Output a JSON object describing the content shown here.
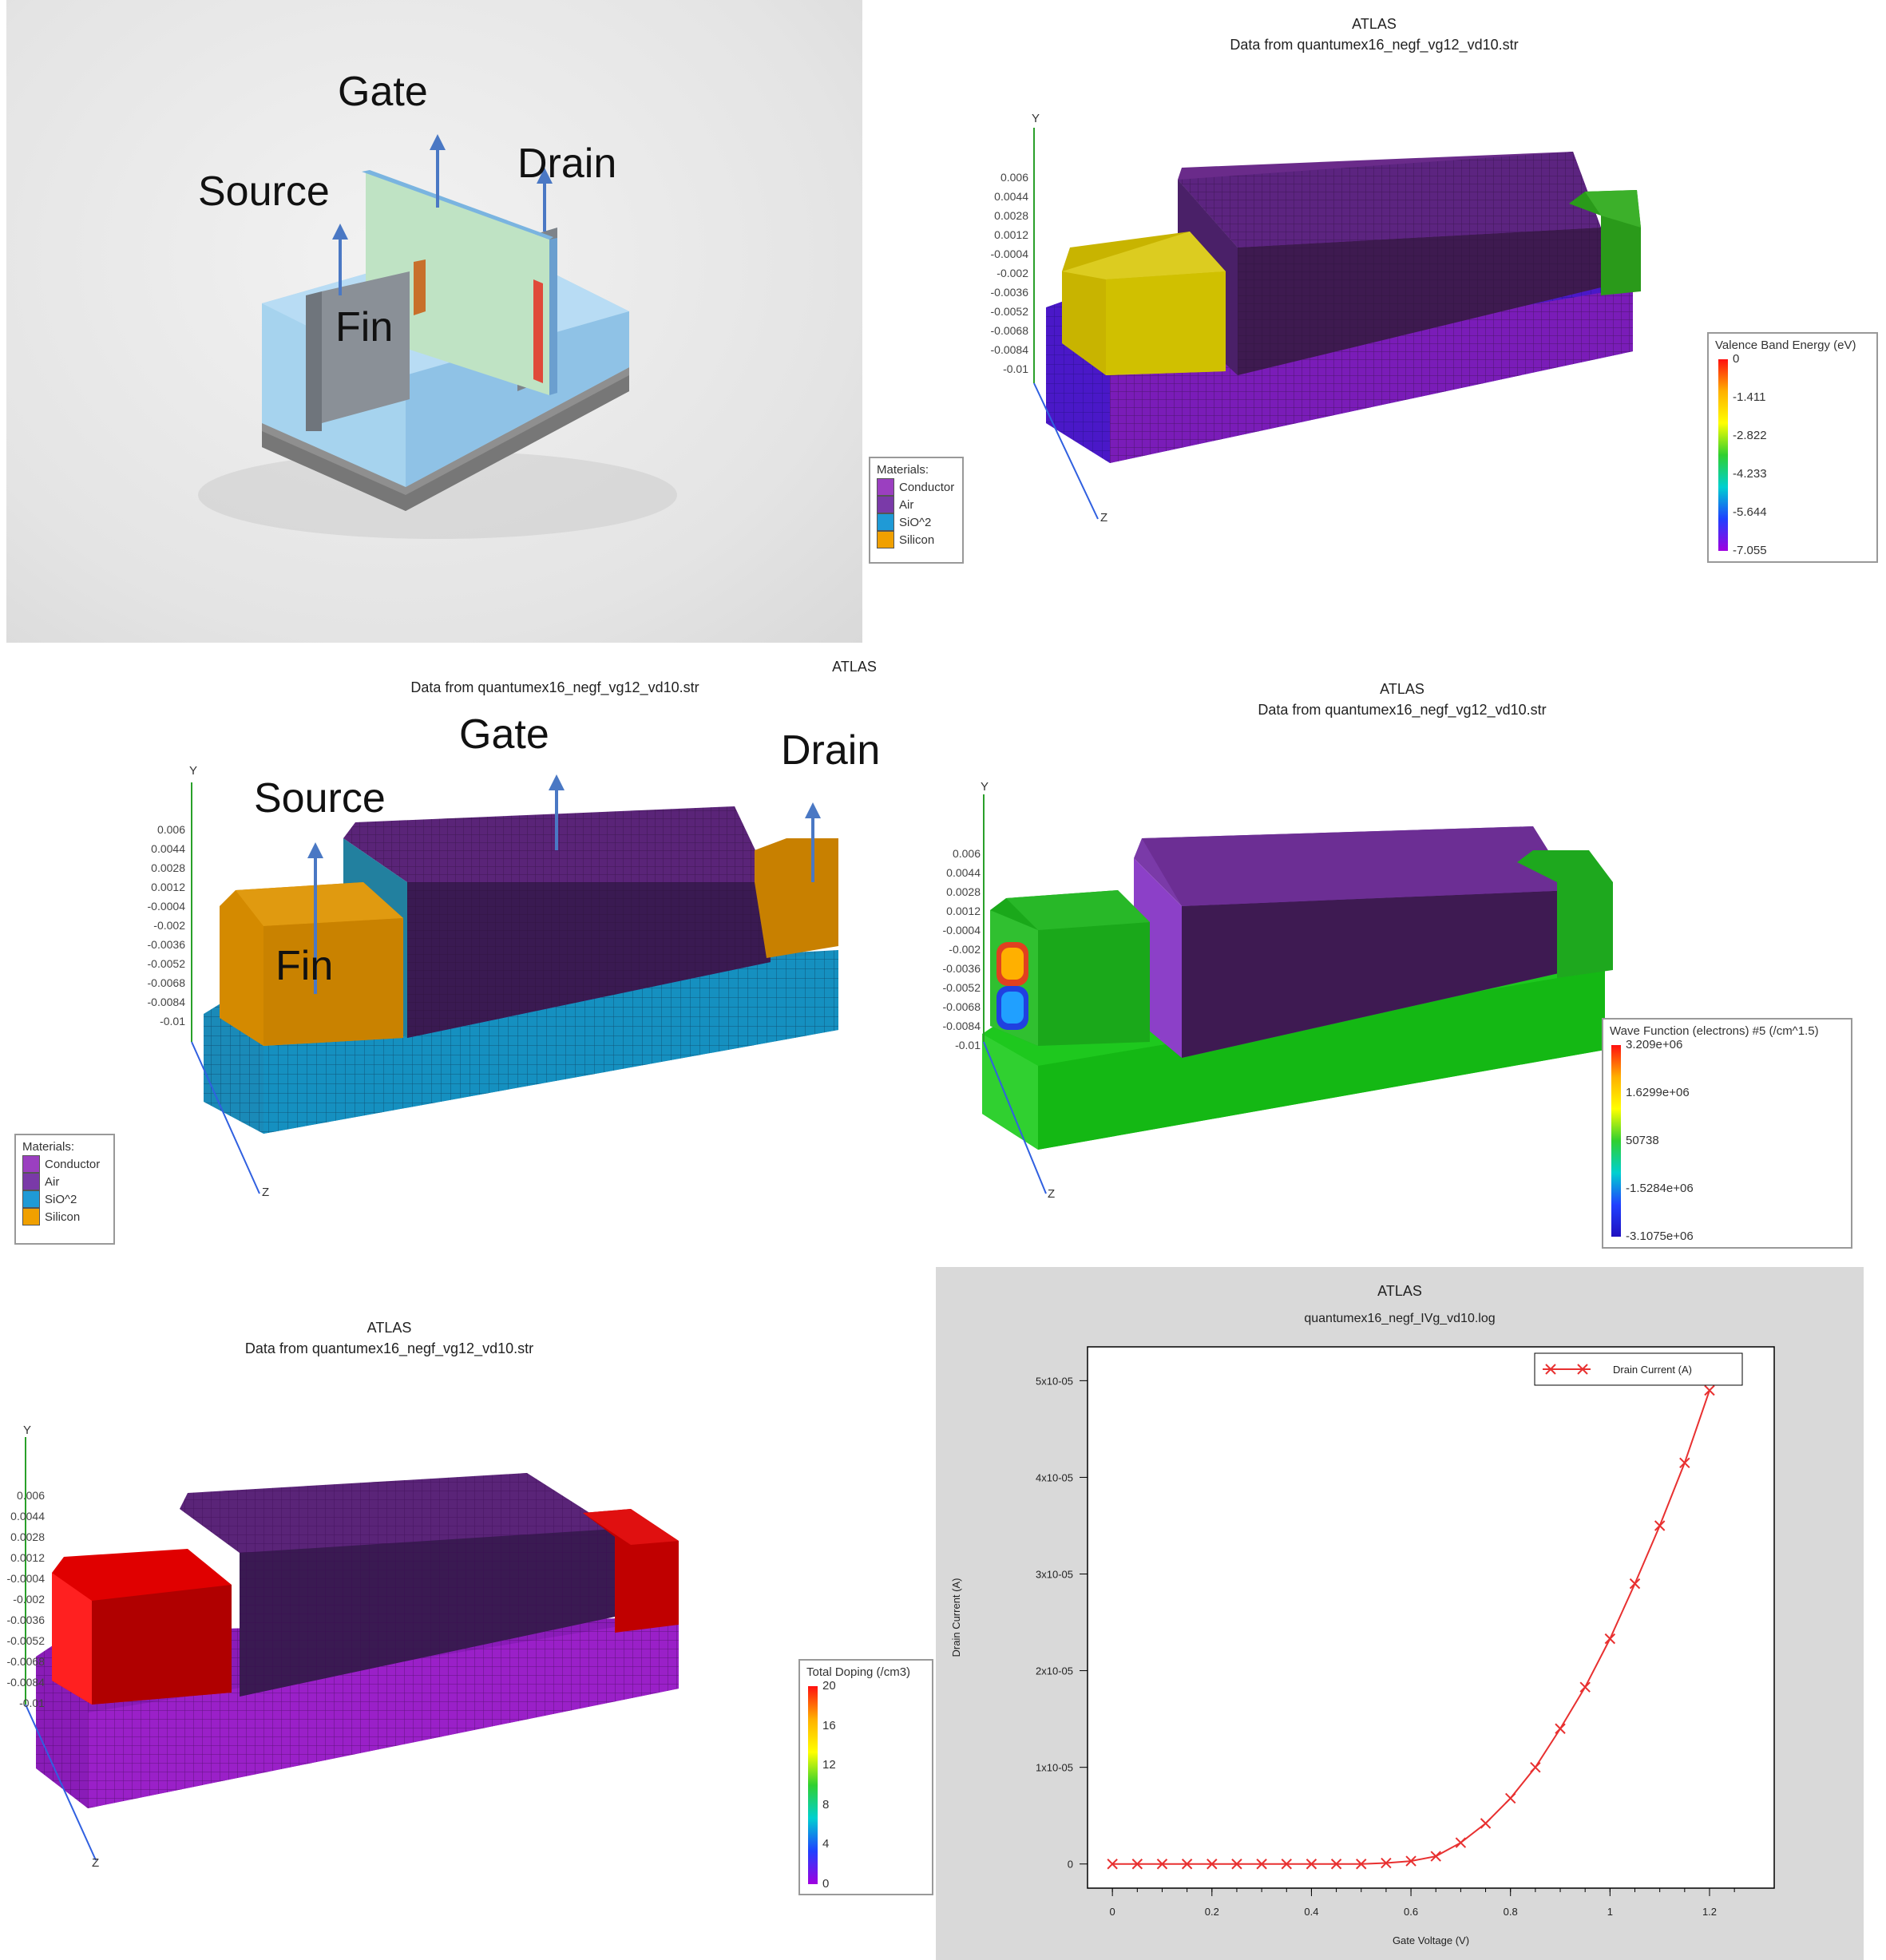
{
  "photo_panel": {
    "labels": {
      "gate": "Gate",
      "source": "Source",
      "drain": "Drain",
      "fin": "Fin"
    }
  },
  "valence_panel": {
    "title": "ATLAS",
    "subtitle": "Data from quantumex16_negf_vg12_vd10.str",
    "colorbar_title": "Valence Band Energy (eV)",
    "colorbar_ticks": [
      "0",
      "-1.411",
      "-2.822",
      "-4.233",
      "-5.644",
      "-7.055"
    ],
    "y_ticks": [
      "0.006",
      "0.0044",
      "0.0028",
      "0.0012",
      "-0.0004",
      "-0.002",
      "-0.0036",
      "-0.0052",
      "-0.0068",
      "-0.0084",
      "-0.01"
    ]
  },
  "materials_legend": {
    "title": "Materials:",
    "items": [
      {
        "label": "Conductor",
        "color": "#9b3fc0"
      },
      {
        "label": "Air",
        "color": "#7a3aa8"
      },
      {
        "label": "SiO^2",
        "color": "#1f9ad6"
      },
      {
        "label": "Silicon",
        "color": "#f0a000"
      }
    ]
  },
  "materials_panel": {
    "title": "ATLAS",
    "subtitle": "Data from quantumex16_negf_vg12_vd10.str",
    "labels": {
      "gate": "Gate",
      "source": "Source",
      "drain": "Drain",
      "fin": "Fin"
    },
    "y_ticks": [
      "0.006",
      "0.0044",
      "0.0028",
      "0.0012",
      "-0.0004",
      "-0.002",
      "-0.0036",
      "-0.0052",
      "-0.0068",
      "-0.0084",
      "-0.01"
    ]
  },
  "wavefunction_panel": {
    "title": "ATLAS",
    "subtitle": "Data from quantumex16_negf_vg12_vd10.str",
    "colorbar_title": "Wave Function (electrons) #5 (/cm^1.5)",
    "colorbar_ticks": [
      "3.209e+06",
      "1.6299e+06",
      "50738",
      "-1.5284e+06",
      "-3.1075e+06"
    ],
    "y_ticks": [
      "0.006",
      "0.0044",
      "0.0028",
      "0.0012",
      "-0.0004",
      "-0.002",
      "-0.0036",
      "-0.0052",
      "-0.0068",
      "-0.0084",
      "-0.01"
    ]
  },
  "doping_panel": {
    "title": "ATLAS",
    "subtitle": "Data from quantumex16_negf_vg12_vd10.str",
    "colorbar_title": "Total Doping (/cm3)",
    "colorbar_ticks": [
      "20",
      "16",
      "12",
      "8",
      "4",
      "0"
    ],
    "y_ticks": [
      "0.006",
      "0.0044",
      "0.0028",
      "0.0012",
      "-0.0004",
      "-0.002",
      "-0.0036",
      "-0.0052",
      "-0.0068",
      "-0.0084",
      "-0.01"
    ]
  },
  "axis_labels": {
    "y": "Y",
    "z": "Z"
  },
  "chart_data": {
    "type": "line",
    "title": "ATLAS",
    "subtitle": "quantumex16_negf_IVg_vd10.log",
    "xlabel": "Gate Voltage (V)",
    "ylabel": "Drain Current (A)",
    "legend": "top-right",
    "series": [
      {
        "name": "Drain Current (A)",
        "color": "#e83030",
        "x": [
          0,
          0.05,
          0.1,
          0.15,
          0.2,
          0.25,
          0.3,
          0.35,
          0.4,
          0.45,
          0.5,
          0.55,
          0.6,
          0.65,
          0.7,
          0.75,
          0.8,
          0.85,
          0.9,
          0.95,
          1.0,
          1.05,
          1.1,
          1.15,
          1.2
        ],
        "y": [
          0,
          0,
          0,
          0,
          0,
          0,
          0,
          0,
          0,
          0,
          0,
          1e-07,
          3e-07,
          8e-07,
          2.2e-06,
          4.2e-06,
          6.8e-06,
          1e-05,
          1.4e-05,
          1.83e-05,
          2.33e-05,
          2.9e-05,
          3.5e-05,
          4.15e-05,
          4.9e-05
        ]
      }
    ],
    "xlim": [
      -0.05,
      1.33
    ],
    "ylim": [
      -2.5e-06,
      5.35e-05
    ],
    "x_ticks": [
      {
        "v": 0,
        "label": "0"
      },
      {
        "v": 0.2,
        "label": "0.2"
      },
      {
        "v": 0.4,
        "label": "0.4"
      },
      {
        "v": 0.6,
        "label": "0.6"
      },
      {
        "v": 0.8,
        "label": "0.8"
      },
      {
        "v": 1,
        "label": "1"
      },
      {
        "v": 1.2,
        "label": "1.2"
      }
    ],
    "y_ticks": [
      {
        "v": 0,
        "label": "0"
      },
      {
        "v": 1e-05,
        "label": "1x10-05"
      },
      {
        "v": 2e-05,
        "label": "2x10-05"
      },
      {
        "v": 3e-05,
        "label": "3x10-05"
      },
      {
        "v": 4e-05,
        "label": "4x10-05"
      },
      {
        "v": 5e-05,
        "label": "5x10-05"
      }
    ]
  }
}
